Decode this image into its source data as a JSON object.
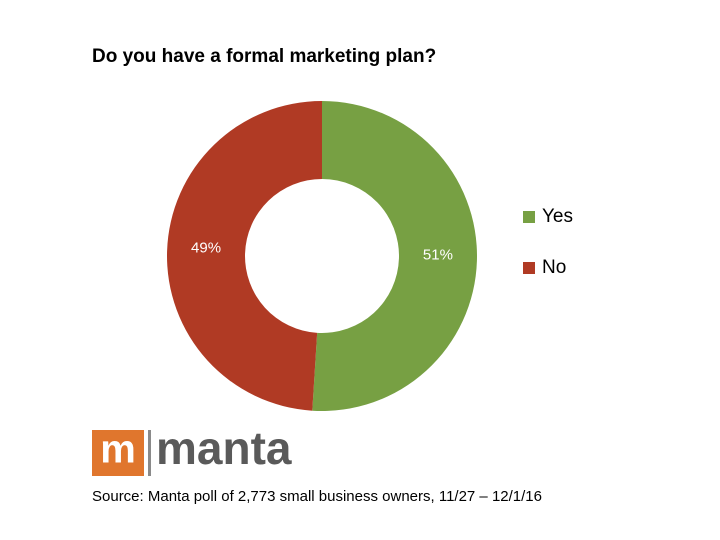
{
  "chart_data": {
    "type": "donut",
    "title": "Do you have a formal marketing plan?",
    "categories": [
      "Yes",
      "No"
    ],
    "values": [
      51,
      49
    ],
    "value_labels": [
      "51%",
      "49%"
    ],
    "colors": [
      "#77a043",
      "#b03a24"
    ],
    "legend": "right",
    "logo_letter": "m",
    "logo_text": "manta",
    "source": "Source: Manta poll of 2,773 small business owners, 11/27 – 12/1/16"
  }
}
